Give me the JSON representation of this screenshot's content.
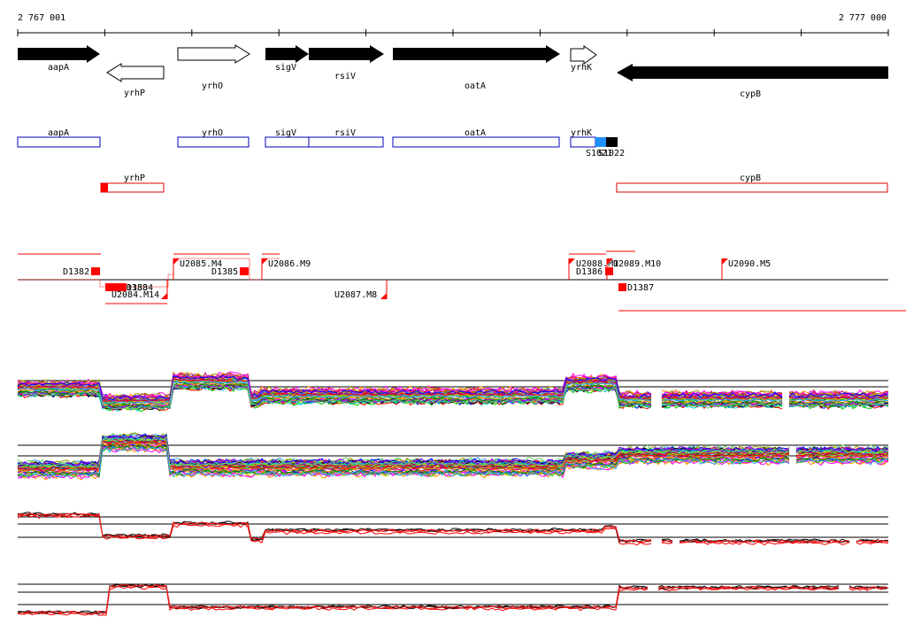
{
  "coords": {
    "start": "2 767 001",
    "end": "2 777 000"
  },
  "genes": [
    {
      "name": "aapA",
      "strand": "+",
      "filled": true
    },
    {
      "name": "yrhP",
      "strand": "-",
      "filled": false
    },
    {
      "name": "yrhO",
      "strand": "+",
      "filled": false
    },
    {
      "name": "sigV",
      "strand": "+",
      "filled": true
    },
    {
      "name": "rsiV",
      "strand": "+",
      "filled": true
    },
    {
      "name": "oatA",
      "strand": "+",
      "filled": true
    },
    {
      "name": "yrhK",
      "strand": "+",
      "filled": false
    },
    {
      "name": "cypB",
      "strand": "-",
      "filled": true
    }
  ],
  "fwd_boxes": [
    "aapA",
    "yrhO",
    "sigV",
    "rsiV",
    "oatA",
    "yrhK"
  ],
  "fwd_small_labels": [
    "S1021",
    "S1022"
  ],
  "rev_boxes": [
    "yrhP",
    "cypB"
  ],
  "features": {
    "above": [
      "D1382",
      "U2085.M4",
      "D1385",
      "U2086.M9",
      "U2088.M1",
      "U2089.M10",
      "D1386",
      "U2090.M5"
    ],
    "below": [
      "D1383",
      "D1384",
      "U2084.M14",
      "U2087.M8",
      "D1387"
    ]
  },
  "colors": {
    "gene_fill": "#000000",
    "box_forward": "#0000bb",
    "box_reverse": "#dd0000",
    "feature": "#ff0000",
    "cyan": "#1e90ff"
  }
}
